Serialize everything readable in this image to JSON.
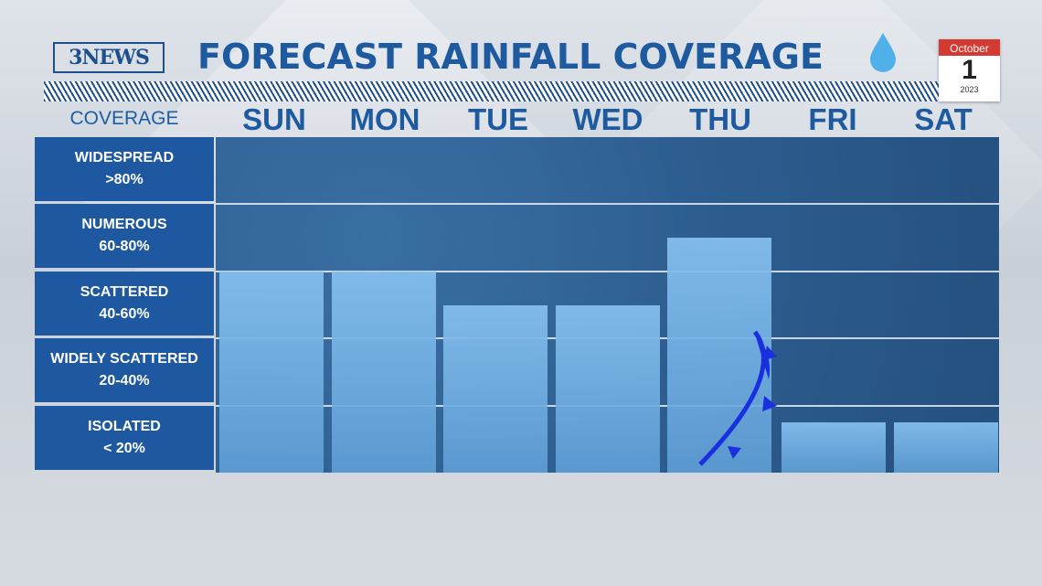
{
  "header": {
    "logo_text": "3NEWS",
    "title": "FORECAST RAINFALL COVERAGE",
    "drop_icon": "raindrop-icon",
    "calendar": {
      "month": "October",
      "day": "1",
      "year": "2023"
    }
  },
  "chart_data": {
    "type": "bar",
    "y_axis_title": "COVERAGE",
    "categories": [
      "SUN",
      "MON",
      "TUE",
      "WED",
      "THU",
      "FRI",
      "SAT"
    ],
    "values": [
      60,
      60,
      50,
      50,
      70,
      15,
      15
    ],
    "ylim": [
      0,
      100
    ],
    "coverage_bands": [
      {
        "name": "WIDESPREAD",
        "range": ">80%"
      },
      {
        "name": "NUMEROUS",
        "range": "60-80%"
      },
      {
        "name": "SCATTERED",
        "range": "40-60%"
      },
      {
        "name": "WIDELY SCATTERED",
        "range": "20-40%"
      },
      {
        "name": "ISOLATED",
        "range": "< 20%"
      }
    ],
    "annotation": "cold front symbol between THU and FRI",
    "colors": {
      "bar": "#84bdee",
      "band_label_bg": "#1d58a0",
      "plot_bg": "#2b5a8c",
      "front": "#1a2fe0"
    }
  }
}
